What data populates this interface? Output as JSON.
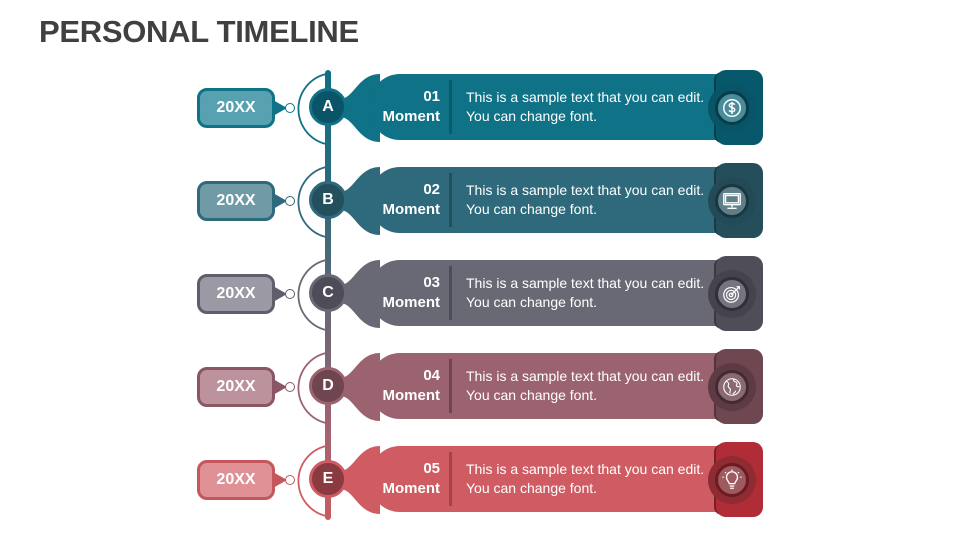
{
  "title": "PERSONAL TIMELINE",
  "rows": [
    {
      "year": "20XX",
      "letter": "A",
      "number": "01",
      "moment": "Moment",
      "text": "This is a sample text that you can edit. You can change font.",
      "icon": "dollar-icon",
      "colors": {
        "band": "#0f7287",
        "year_bg": "#58a1b0",
        "year_border": "#0f7287",
        "node": "#0a5467",
        "tab": "#07586a",
        "tab_shadow": "#053f4c",
        "divider": "#0a5a6b",
        "ring": "#0a5467",
        "inner": "#4a8c99",
        "inner_border": "#063e4b"
      }
    },
    {
      "year": "20XX",
      "letter": "B",
      "number": "02",
      "moment": "Moment",
      "text": "This is a sample text that you can edit. You can change font.",
      "icon": "monitor-icon",
      "colors": {
        "band": "#2e6a7b",
        "year_bg": "#6f9aa6",
        "year_border": "#2e6a7b",
        "node": "#244f5d",
        "tab": "#254e5b",
        "tab_shadow": "#193a44",
        "divider": "#244f5d",
        "ring": "#234a57",
        "inner": "#5f7f89",
        "inner_border": "#1a3842"
      }
    },
    {
      "year": "20XX",
      "letter": "C",
      "number": "03",
      "moment": "Moment",
      "text": "This is a sample text that you can edit. You can change font.",
      "icon": "target-icon",
      "colors": {
        "band": "#696875",
        "year_bg": "#9a99a4",
        "year_border": "#5f5e6b",
        "node": "#4d4c58",
        "tab": "#4e4d58",
        "tab_shadow": "#393843",
        "divider": "#4d4c58",
        "ring": "#44434e",
        "inner": "#76757f",
        "inner_border": "#31303a"
      }
    },
    {
      "year": "20XX",
      "letter": "D",
      "number": "04",
      "moment": "Moment",
      "text": "This is a sample text that you can edit. You can change font.",
      "icon": "globe-icon",
      "colors": {
        "band": "#9b6370",
        "year_bg": "#bc939c",
        "year_border": "#8a5663",
        "node": "#6f4550",
        "tab": "#6e4751",
        "tab_shadow": "#53333c",
        "divider": "#6f4550",
        "ring": "#5e3a44",
        "inner": "#8a6a72",
        "inner_border": "#432a31"
      }
    },
    {
      "year": "20XX",
      "letter": "E",
      "number": "05",
      "moment": "Moment",
      "text": "This is a sample text that you can edit. You can change font.",
      "icon": "lightbulb-icon",
      "colors": {
        "band": "#ce5c62",
        "year_bg": "#df9196",
        "year_border": "#c4565c",
        "node": "#8c3a41",
        "tab": "#b02d38",
        "tab_shadow": "#7b1f27",
        "divider": "#a6434a",
        "ring": "#8f2b33",
        "inner": "#9e5a5f",
        "inner_border": "#6b1c23"
      }
    }
  ]
}
